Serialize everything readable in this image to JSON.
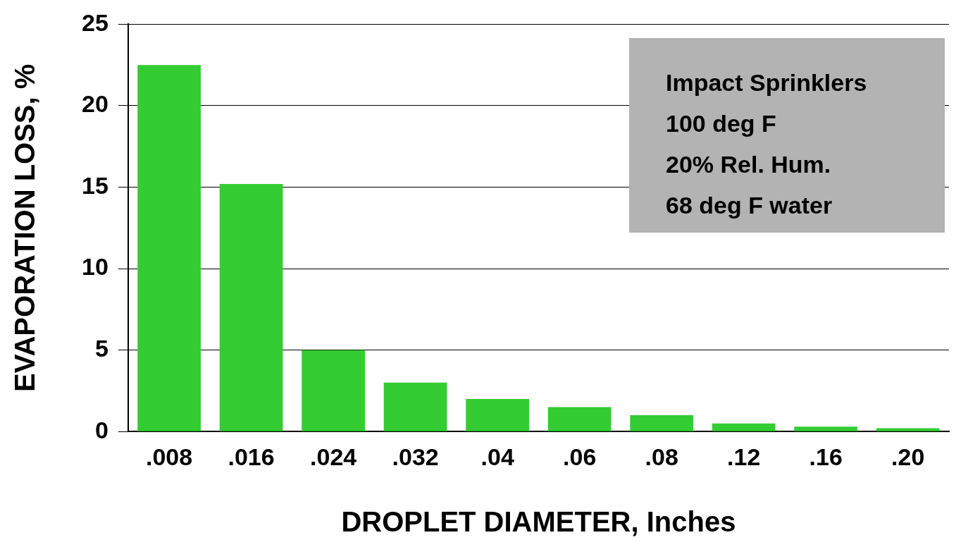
{
  "chart_data": {
    "type": "bar",
    "xlabel": "DROPLET DIAMETER, Inches",
    "ylabel": "EVAPORATION LOSS, %",
    "categories": [
      ".008",
      ".016",
      ".024",
      ".032",
      ".04",
      ".06",
      ".08",
      ".12",
      ".16",
      ".20"
    ],
    "values": [
      22.5,
      15.2,
      5.0,
      3.0,
      2.0,
      1.5,
      1.0,
      0.5,
      0.3,
      0.2
    ],
    "color": "#33cc33",
    "ylim": [
      0,
      25
    ],
    "yticks": [
      0,
      5,
      10,
      15,
      20,
      25
    ],
    "grid": "y",
    "legend": false,
    "annotations": [
      "Impact Sprinklers",
      "100 deg F",
      "20% Rel. Hum.",
      "68 deg F water"
    ]
  }
}
